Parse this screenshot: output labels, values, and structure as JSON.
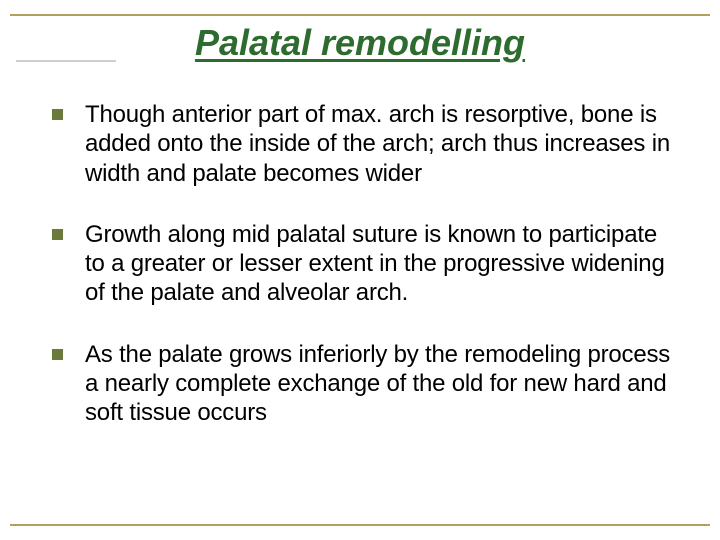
{
  "slide": {
    "title": "Palatal remodelling",
    "title_color": "#2e6b2e",
    "title_fontsize": 36,
    "title_italic": true,
    "title_underline": true,
    "rule_color": "#b0a060",
    "background_color": "#ffffff",
    "bullets": [
      {
        "text": "Though anterior part of max. arch is resorptive, bone is added onto the inside of the arch; arch thus increases in width and palate becomes wider"
      },
      {
        "text": "Growth along mid palatal suture is known to participate to a greater or lesser extent in the progressive widening of the palate and alveolar arch."
      },
      {
        "text": "As the palate grows inferiorly by the remodeling process a nearly complete exchange of the old for new hard and soft tissue occurs"
      }
    ],
    "bullet_color": "#6b7a3a",
    "bullet_fontsize": 24,
    "text_color": "#000000"
  }
}
